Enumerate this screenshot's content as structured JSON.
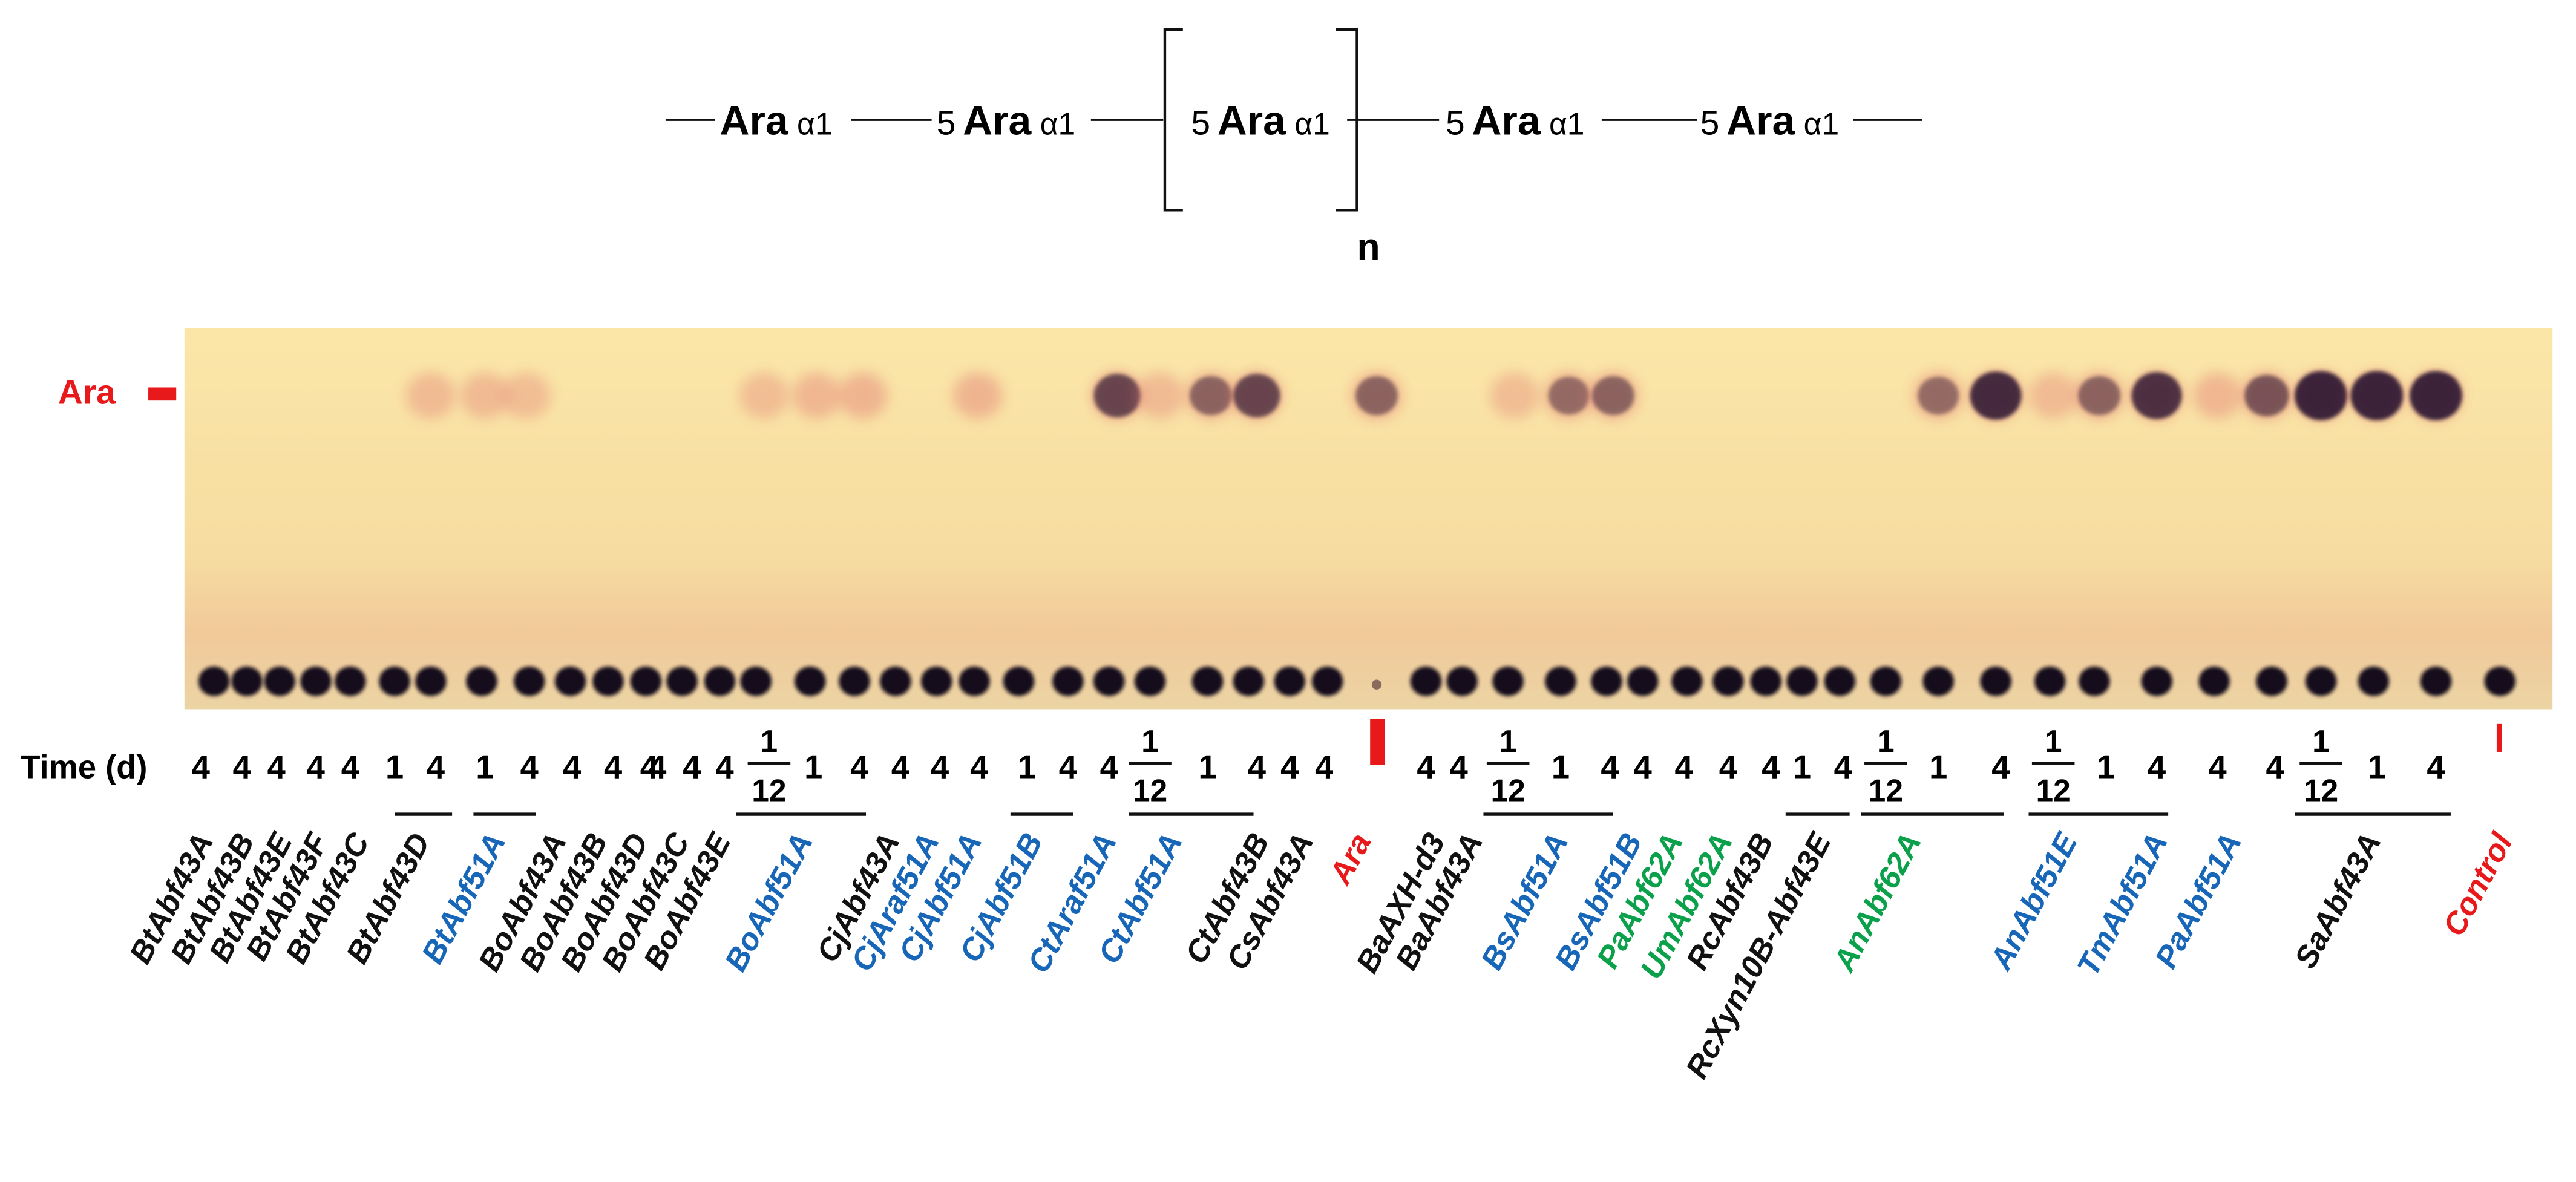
{
  "structure": {
    "residue": "Ara",
    "linkage": "α1",
    "position": "5",
    "repeat": "n"
  },
  "gel": {
    "marker_label": "Ara"
  },
  "time_label": "Time (d)",
  "times": [
    {
      "text": "4"
    },
    {
      "text": "4"
    },
    {
      "text": "4"
    },
    {
      "text": "4"
    },
    {
      "text": "4"
    },
    {
      "text": "1"
    },
    {
      "text": "4"
    },
    {
      "text": "1"
    },
    {
      "text": "4"
    },
    {
      "text": "4"
    },
    {
      "text": "4"
    },
    {
      "text": "4"
    },
    {
      "text": "4"
    },
    {
      "text": "4"
    },
    {
      "text": "4"
    },
    {
      "num": "1",
      "den": "12"
    },
    {
      "text": "1"
    },
    {
      "text": "4"
    },
    {
      "text": "4"
    },
    {
      "text": "4"
    },
    {
      "text": "4"
    },
    {
      "text": "1"
    },
    {
      "text": "4"
    },
    {
      "text": "4"
    },
    {
      "num": "1",
      "den": "12"
    },
    {
      "text": "1"
    },
    {
      "text": "4"
    },
    {
      "text": "4"
    },
    {
      "text": "4"
    },
    {
      "text": "4"
    },
    {
      "text": "4"
    },
    {
      "num": "1",
      "den": "12"
    },
    {
      "text": "1"
    },
    {
      "text": "4"
    },
    {
      "text": "4"
    },
    {
      "text": "4"
    },
    {
      "text": "4"
    },
    {
      "text": "4"
    },
    {
      "text": "1"
    },
    {
      "text": "4"
    },
    {
      "num": "1",
      "den": "12"
    },
    {
      "text": "1"
    },
    {
      "text": "4"
    },
    {
      "num": "1",
      "den": "12"
    },
    {
      "text": "1"
    },
    {
      "text": "4"
    },
    {
      "text": "4"
    },
    {
      "text": "4"
    },
    {
      "num": "1",
      "den": "12"
    },
    {
      "text": "1"
    },
    {
      "text": "4"
    }
  ],
  "samples": [
    {
      "name": "BtAbf43A",
      "color": "#111111"
    },
    {
      "name": "BtAbf43B",
      "color": "#111111"
    },
    {
      "name": "BtAbf43E",
      "color": "#111111"
    },
    {
      "name": "BtAbf43F",
      "color": "#111111"
    },
    {
      "name": "BtAbf43C",
      "color": "#111111"
    },
    {
      "name": "BtAbf43D",
      "color": "#111111"
    },
    {
      "name": "BtAbf51A",
      "color": "#1766b8"
    },
    {
      "name": "BoAbf43A",
      "color": "#111111"
    },
    {
      "name": "BoAbf43B",
      "color": "#111111"
    },
    {
      "name": "BoAbf43D",
      "color": "#111111"
    },
    {
      "name": "BoAbf43C",
      "color": "#111111"
    },
    {
      "name": "BoAbf43E",
      "color": "#111111"
    },
    {
      "name": "BoAbf51A",
      "color": "#1766b8"
    },
    {
      "name": "CjAbf43A",
      "color": "#111111"
    },
    {
      "name": "CjAraf51A",
      "color": "#1766b8"
    },
    {
      "name": "CjAbf51A",
      "color": "#1766b8"
    },
    {
      "name": "CjAbf51B",
      "color": "#1766b8"
    },
    {
      "name": "CtAraf51A",
      "color": "#1766b8"
    },
    {
      "name": "CtAbf51A",
      "color": "#1766b8"
    },
    {
      "name": "CtAbf43B",
      "color": "#111111"
    },
    {
      "name": "CsAbf43A",
      "color": "#111111"
    },
    {
      "name": "Ara",
      "color": "#e8191a"
    },
    {
      "name": "BaAXH-d3",
      "color": "#111111"
    },
    {
      "name": "BaAbf43A",
      "color": "#111111"
    },
    {
      "name": "BsAbf51A",
      "color": "#1766b8"
    },
    {
      "name": "BsAbf51B",
      "color": "#1766b8"
    },
    {
      "name": "PaAbf62A",
      "color": "#0ba14b"
    },
    {
      "name": "UmAbf62A",
      "color": "#0ba14b"
    },
    {
      "name": "RcAbf43B",
      "color": "#111111"
    },
    {
      "name": "RcXyn10B-Abf43E",
      "color": "#111111"
    },
    {
      "name": "AnAbf62A",
      "color": "#0ba14b"
    },
    {
      "name": "AnAbf51E",
      "color": "#1766b8"
    },
    {
      "name": "TmAbf51A",
      "color": "#1766b8"
    },
    {
      "name": "PaAbf51A",
      "color": "#1766b8"
    },
    {
      "name": "SaAbf43A",
      "color": "#111111"
    },
    {
      "name": "Control",
      "color": "#e8191a"
    }
  ]
}
